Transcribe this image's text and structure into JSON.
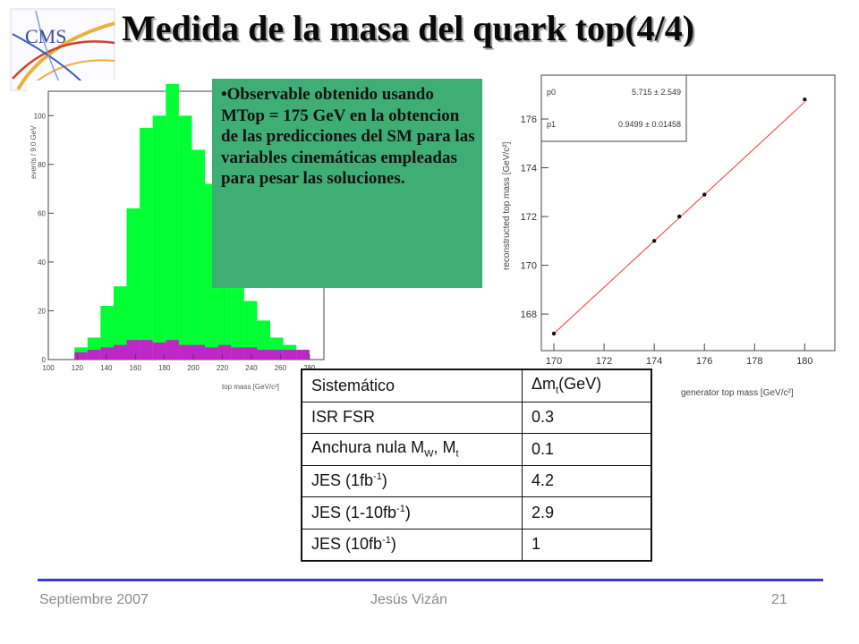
{
  "slide": {
    "title": "Medida de la masa del quark top(4/4)",
    "callout_text": "•Observable obtenido usando MTop = 175 GeV en la obtencion de las predicciones del SM para las variables cinemáticas empleadas para pesar las soluciones."
  },
  "logo": {
    "text": "CMS"
  },
  "histogram": {
    "ylabel": "events / 9.0 GeV",
    "xlabel": "top mass [GeV/c²]",
    "yticks": [
      "0",
      "20",
      "40",
      "60",
      "80",
      "100"
    ],
    "xticks": [
      "100",
      "120",
      "140",
      "160",
      "180",
      "200",
      "220",
      "240",
      "260",
      "280"
    ],
    "ylim": [
      0,
      110
    ],
    "xlim": [
      100,
      290
    ],
    "bin_edges": [
      118,
      127,
      136,
      145,
      154,
      163,
      172,
      181,
      190,
      199,
      208,
      217,
      226,
      235,
      244,
      253,
      262,
      271,
      280
    ],
    "signal_values": [
      5,
      9,
      22,
      30,
      62,
      95,
      100,
      113,
      100,
      86,
      72,
      50,
      35,
      24,
      16,
      9,
      6,
      4
    ],
    "background_values": [
      3,
      4,
      5,
      6,
      8,
      8,
      7,
      8,
      6,
      6,
      5,
      6,
      5,
      5,
      4,
      4,
      4,
      4
    ],
    "colors": {
      "signal": "#00ff33",
      "background": "#e000e0"
    }
  },
  "chart_data": {
    "type": "scatter",
    "xlabel": "generator top mass [GeV/c²]",
    "ylabel": "reconstructed top mass [GeV/c²]",
    "x": [
      170,
      174,
      175,
      176,
      180
    ],
    "y": [
      167.2,
      171.0,
      172.0,
      172.9,
      176.8
    ],
    "xlim": [
      169.5,
      181.2
    ],
    "ylim": [
      166.5,
      177.8
    ],
    "xticks": [
      "170",
      "172",
      "174",
      "176",
      "178",
      "180"
    ],
    "yticks": [
      "168",
      "170",
      "172",
      "174",
      "176"
    ],
    "fit_line": {
      "p0": 5.715,
      "p1": 0.9499,
      "color": "#ff3333"
    },
    "stats": [
      {
        "name": "p0",
        "value": "5.715 ± 2.549"
      },
      {
        "name": "p1",
        "value": "0.9499 ± 0.01458"
      }
    ]
  },
  "table": {
    "header": {
      "col1": "Sistemático",
      "col2_symbol": "Δm",
      "col2_sub": "t",
      "col2_unit": "(GeV)"
    },
    "rows": [
      {
        "name": "ISR FSR",
        "value": "0.3"
      },
      {
        "name_a": "Anchura nula M",
        "sub_a": "W",
        "name_b": ", M",
        "sub_b": "t",
        "value": "0.1"
      },
      {
        "name": "JES (1fb",
        "sup": "-1",
        "tail": ")",
        "value": "4.2"
      },
      {
        "name": "JES (1-10fb",
        "sup": "-1",
        "tail": ")",
        "value": "2.9"
      },
      {
        "name": "JES (10fb",
        "sup": "-1",
        "tail": ")",
        "value": "1"
      }
    ]
  },
  "footer": {
    "date": "Septiembre 2007",
    "author": "Jesús Vizán",
    "page": "21"
  }
}
